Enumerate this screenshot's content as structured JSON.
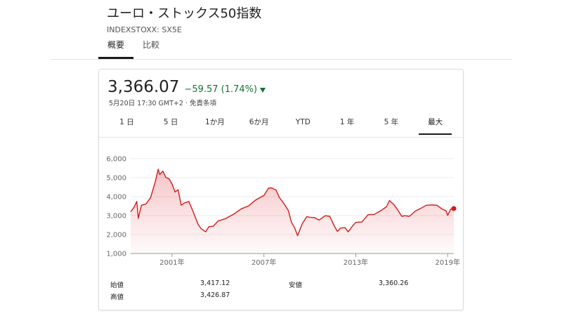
{
  "header": {
    "title": "ユーロ・ストックス50指数",
    "ticker": "INDEXSTOXX: SX5E",
    "tabs": [
      {
        "label": "概要",
        "active": true
      },
      {
        "label": "比較",
        "active": false
      }
    ]
  },
  "quote": {
    "price": "3,366.07",
    "change": "−59.57 (1.74%)",
    "direction": "down",
    "change_color": "#137333",
    "timestamp": "5月20日 17:30 GMT+2 · 免責条項"
  },
  "ranges": [
    {
      "label": "1 日",
      "active": false
    },
    {
      "label": "5 日",
      "active": false
    },
    {
      "label": "1か月",
      "active": false
    },
    {
      "label": "6か月",
      "active": false
    },
    {
      "label": "YTD",
      "active": false
    },
    {
      "label": "1 年",
      "active": false
    },
    {
      "label": "5 年",
      "active": false
    },
    {
      "label": "最大",
      "active": true
    }
  ],
  "stats": {
    "open_label": "始値",
    "open_value": "3,417.12",
    "high_label": "高値",
    "high_value": "3,426.87",
    "low_label": "安値",
    "low_value": "3,360.26"
  },
  "chart_data": {
    "type": "area",
    "line_color": "#d31a1a",
    "yticks": [
      "6,000",
      "5,000",
      "4,000",
      "3,000",
      "2,000",
      "1,000"
    ],
    "ytick_values": [
      6000,
      5000,
      4000,
      3000,
      2000,
      1000
    ],
    "ylim": [
      1000,
      6400
    ],
    "xlim": [
      1998.3,
      2019.4
    ],
    "xticks": [
      "2001年",
      "2007年",
      "2013年",
      "2019年"
    ],
    "xtick_values": [
      2001,
      2007,
      2013,
      2019
    ],
    "x": [
      1998.3,
      1998.5,
      1998.7,
      1998.8,
      1999.0,
      1999.3,
      1999.6,
      1999.9,
      2000.1,
      2000.2,
      2000.4,
      2000.6,
      2000.8,
      2001.0,
      2001.2,
      2001.4,
      2001.6,
      2001.8,
      2002.1,
      2002.4,
      2002.7,
      2002.9,
      2003.2,
      2003.4,
      2003.7,
      2004.0,
      2004.5,
      2005.0,
      2005.5,
      2006.0,
      2006.5,
      2007.0,
      2007.3,
      2007.5,
      2007.8,
      2008.0,
      2008.3,
      2008.6,
      2008.8,
      2009.0,
      2009.2,
      2009.5,
      2009.8,
      2010.0,
      2010.3,
      2010.6,
      2011.0,
      2011.3,
      2011.6,
      2011.8,
      2012.0,
      2012.3,
      2012.5,
      2012.8,
      2013.0,
      2013.4,
      2013.8,
      2014.2,
      2014.6,
      2015.0,
      2015.2,
      2015.5,
      2015.7,
      2016.0,
      2016.2,
      2016.5,
      2016.9,
      2017.2,
      2017.6,
      2018.0,
      2018.3,
      2018.6,
      2018.9,
      2019.0,
      2019.2,
      2019.4
    ],
    "y": [
      3200,
      3450,
      3700,
      2900,
      3500,
      3650,
      3900,
      4800,
      5400,
      5200,
      5300,
      5050,
      4900,
      4700,
      4200,
      4400,
      3500,
      3700,
      3700,
      3200,
      2500,
      2350,
      2100,
      2450,
      2400,
      2750,
      2800,
      3100,
      3300,
      3550,
      3800,
      4100,
      4400,
      4500,
      4300,
      4000,
      3600,
      3300,
      2600,
      2400,
      1900,
      2600,
      2900,
      2950,
      2850,
      2800,
      2950,
      3000,
      2400,
      2200,
      2300,
      2400,
      2100,
      2500,
      2600,
      2700,
      3000,
      3100,
      3200,
      3500,
      3750,
      3600,
      3300,
      3000,
      2950,
      3000,
      3200,
      3400,
      3500,
      3600,
      3500,
      3400,
      3200,
      3050,
      3300,
      3366
    ]
  }
}
